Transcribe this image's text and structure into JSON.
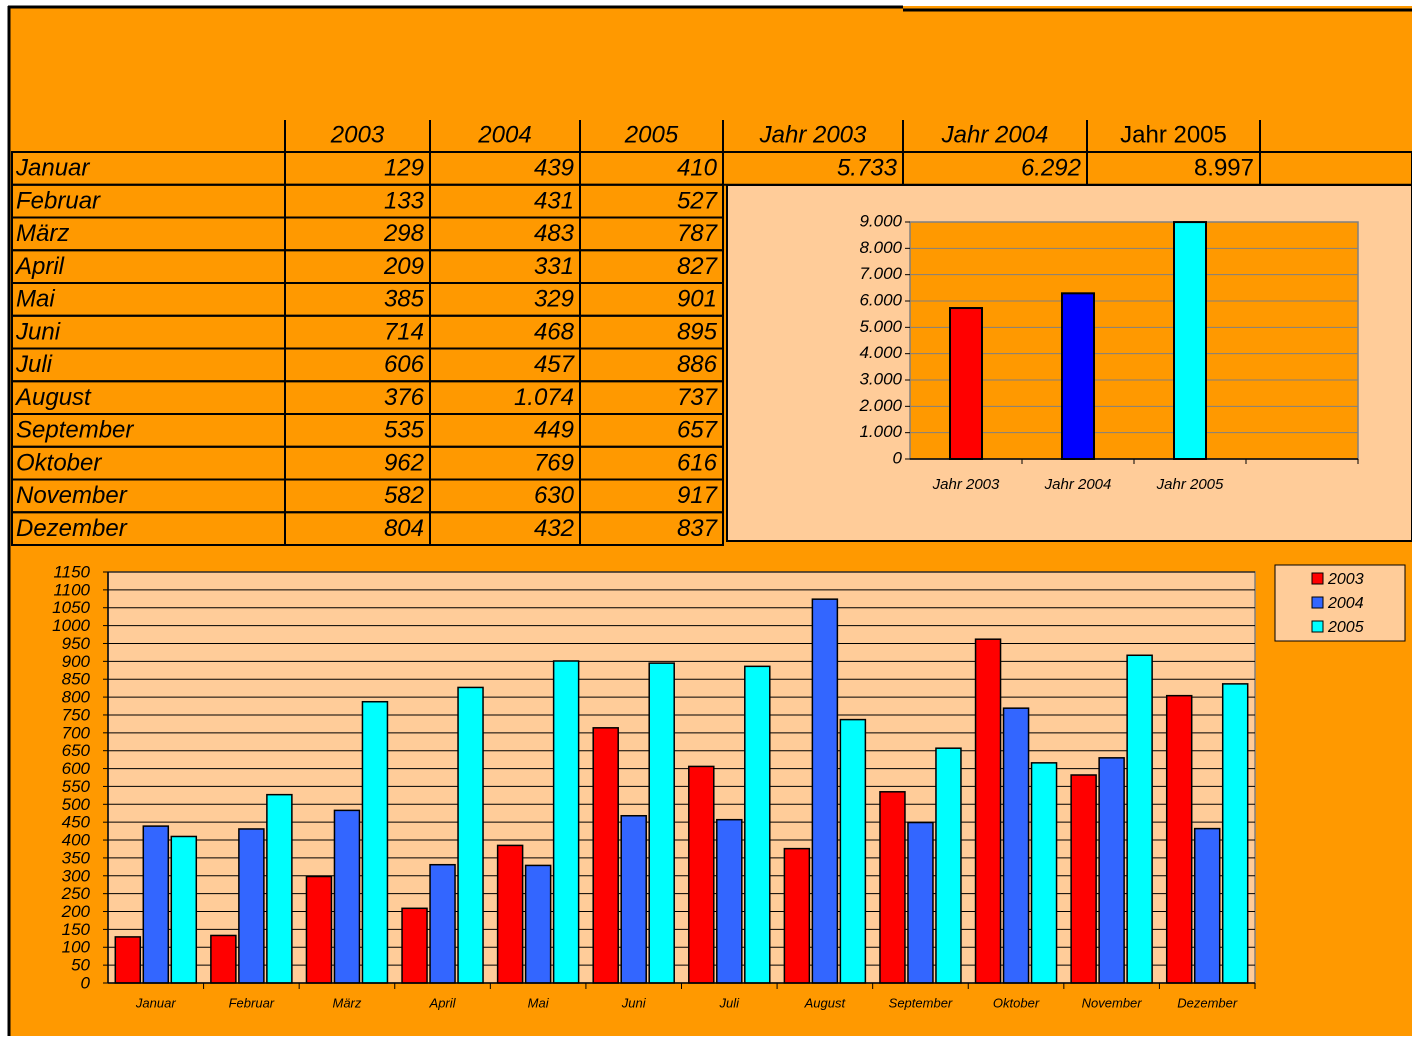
{
  "table": {
    "header": [
      "2003",
      "2004",
      "2005",
      "Jahr 2003",
      "Jahr 2004",
      "Jahr 2005"
    ],
    "rows": [
      [
        "Januar",
        "129",
        "439",
        "410",
        "5.733",
        "6.292",
        "8.997"
      ],
      [
        "Februar",
        "133",
        "431",
        "527"
      ],
      [
        "März",
        "298",
        "483",
        "787"
      ],
      [
        "April",
        "209",
        "331",
        "827"
      ],
      [
        "Mai",
        "385",
        "329",
        "901"
      ],
      [
        "Juni",
        "714",
        "468",
        "895"
      ],
      [
        "Juli",
        "606",
        "457",
        "886"
      ],
      [
        "August",
        "376",
        "1.074",
        "737"
      ],
      [
        "September",
        "535",
        "449",
        "657"
      ],
      [
        "Oktober",
        "962",
        "769",
        "616"
      ],
      [
        "November",
        "582",
        "630",
        "917"
      ],
      [
        "Dezember",
        "804",
        "432",
        "837"
      ]
    ]
  },
  "chart_data": [
    {
      "type": "bar",
      "categories": [
        "Jahr 2003",
        "Jahr 2004",
        "Jahr 2005",
        null
      ],
      "values": [
        5733,
        6292,
        8997,
        null
      ],
      "colors": [
        "#ff0000",
        "#0000ff",
        "#00ffff",
        null
      ],
      "ylim": [
        0,
        9000
      ],
      "yticks": [
        0,
        {
          "value": 1000,
          "label": "1.000"
        },
        {
          "value": 2000,
          "label": "2.000"
        },
        {
          "value": 3000,
          "label": "3.000"
        },
        {
          "value": 4000,
          "label": "4.000"
        },
        {
          "value": 5000,
          "label": "5.000"
        },
        {
          "value": 6000,
          "label": "6.000"
        },
        {
          "value": 7000,
          "label": "7.000"
        },
        {
          "value": 8000,
          "label": "8.000"
        },
        {
          "value": 9000,
          "label": "9.000"
        }
      ],
      "grid": true
    },
    {
      "type": "grouped_bar",
      "categories": [
        "Januar",
        "Februar",
        "März",
        "April",
        "Mai",
        "Juni",
        "Juli",
        "August",
        "September",
        "Oktober",
        "November",
        "Dezember"
      ],
      "series": [
        {
          "name": "2003",
          "color": "#ff0000",
          "values": [
            129,
            133,
            298,
            209,
            385,
            714,
            606,
            376,
            535,
            962,
            582,
            804
          ]
        },
        {
          "name": "2004",
          "color": "#3366ff",
          "values": [
            439,
            431,
            483,
            331,
            329,
            468,
            457,
            1074,
            449,
            769,
            630,
            432
          ]
        },
        {
          "name": "2005",
          "color": "#00ffff",
          "values": [
            410,
            527,
            787,
            827,
            901,
            895,
            886,
            737,
            657,
            616,
            917,
            837
          ]
        }
      ],
      "ylim": [
        0,
        1150
      ],
      "yticks": [
        0,
        50,
        100,
        150,
        200,
        250,
        300,
        350,
        400,
        450,
        500,
        550,
        600,
        650,
        700,
        750,
        800,
        850,
        900,
        950,
        1000,
        1050,
        1100,
        1150
      ],
      "grid": true,
      "legend": "top-right"
    }
  ]
}
